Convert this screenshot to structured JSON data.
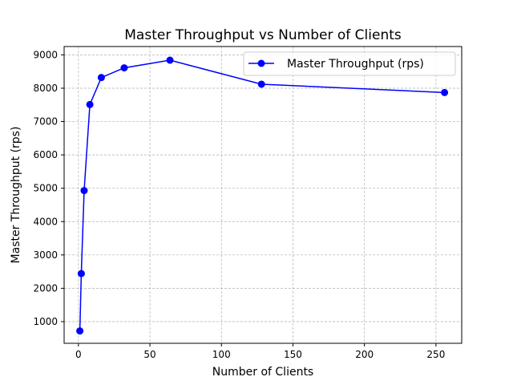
{
  "chart_data": {
    "type": "line",
    "title": "Master Throughput vs Number of Clients",
    "xlabel": "Number of Clients",
    "ylabel": "Master Throughput (rps)",
    "xlim": [
      -10,
      268
    ],
    "ylim": [
      350,
      9250
    ],
    "xticks": [
      0,
      50,
      100,
      150,
      200,
      250
    ],
    "yticks": [
      1000,
      2000,
      3000,
      4000,
      5000,
      6000,
      7000,
      8000,
      9000
    ],
    "grid": true,
    "legend_position": "top-right",
    "series": [
      {
        "name": "Master Throughput (rps)",
        "color": "#0000ff",
        "marker": "circle",
        "x": [
          1,
          2,
          4,
          8,
          16,
          32,
          64,
          128,
          256
        ],
        "y": [
          720,
          2440,
          4930,
          7510,
          8320,
          8610,
          8840,
          8120,
          7870
        ]
      }
    ]
  }
}
